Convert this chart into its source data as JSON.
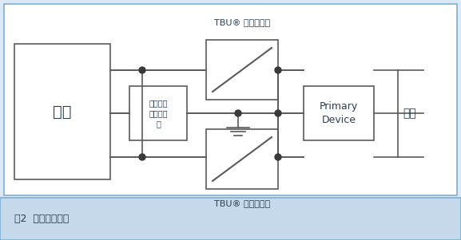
{
  "fig_width": 5.77,
  "fig_height": 3.01,
  "bg_color": "#dce9f5",
  "diagram_bg": "#ffffff",
  "border_color": "#7bafd4",
  "box_edge_color": "#7bafd4",
  "text_color": "#2c3e50",
  "caption_bg": "#c5d9ea",
  "caption_text": "图2  三级防护方案",
  "device_label": "设备",
  "tvs_label": "电压瞬变\n抑制二极\n管",
  "tbu_top_label": "TBU® 高速保护器",
  "tbu_bottom_label": "TBU® 高速保护器",
  "primary_label": "Primary\nDevice",
  "port_label": "接口",
  "line_color": "#5a5a5a",
  "dot_color": "#3a3a3a"
}
